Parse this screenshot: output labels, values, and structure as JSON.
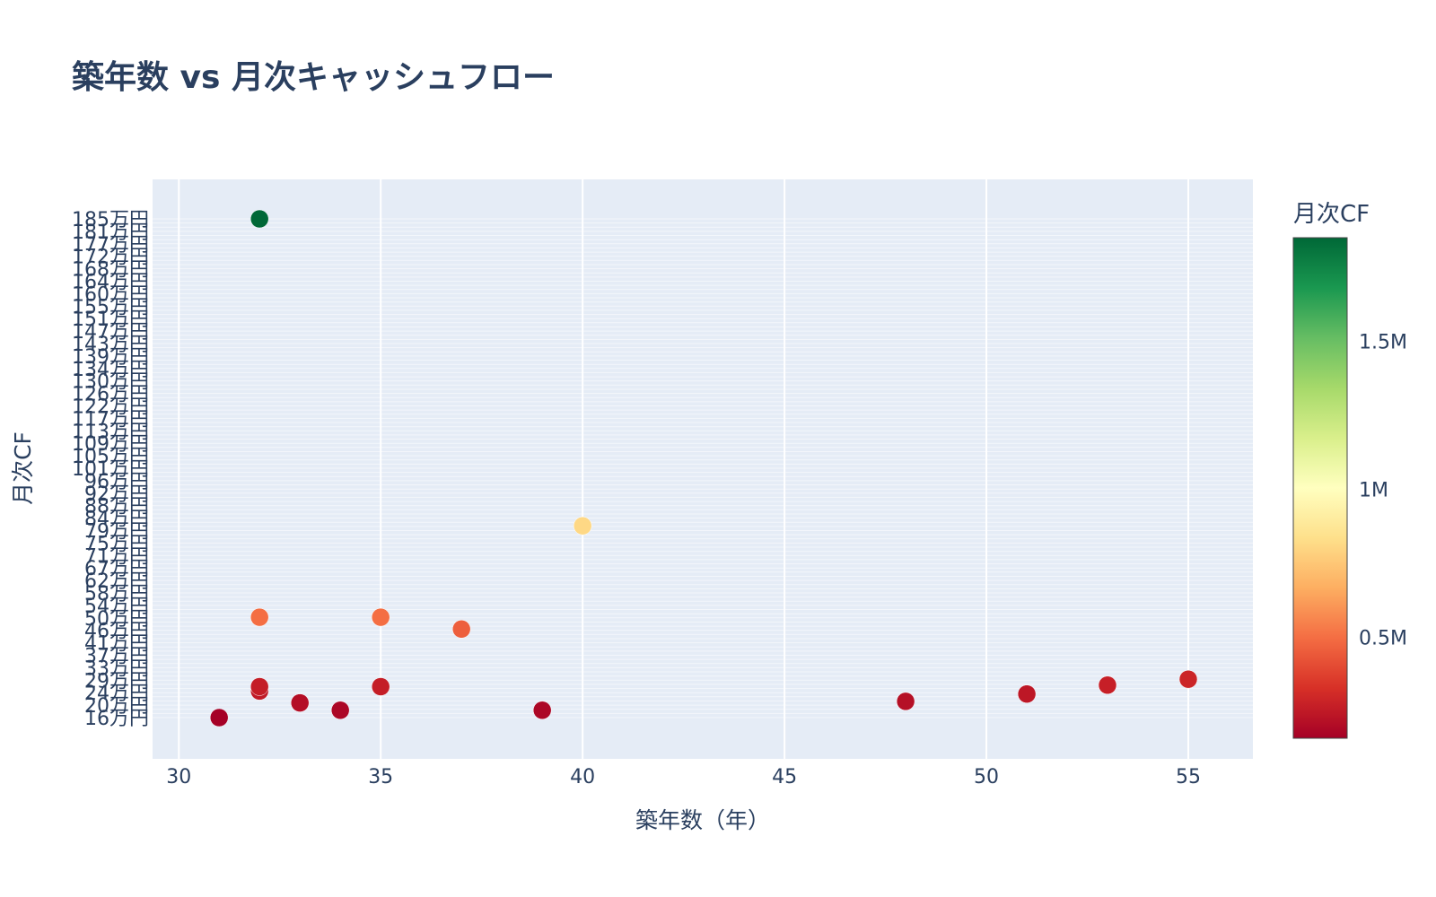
{
  "colors": {
    "plot_bg": "#e5ecf6",
    "grid": "#ffffff",
    "text": "#2a3f5f",
    "colorscale": [
      "#a50026",
      "#d73027",
      "#f46d43",
      "#fdae61",
      "#fee08b",
      "#ffffbf",
      "#d9ef8b",
      "#a6d96a",
      "#66bd63",
      "#1a9850",
      "#006837"
    ]
  },
  "chart_data": {
    "type": "scatter",
    "title": "築年数 vs 月次キャッシュフロー",
    "xlabel": "築年数（年）",
    "ylabel": "月次CF",
    "xlim": [
      29.35,
      56.6
    ],
    "x_ticks": [
      30,
      35,
      40,
      45,
      50,
      55
    ],
    "y_axis_note": "categorical axis: each distinct y value is its own category; tick labels overlap and are illegible except the bottom one",
    "y_bottom_tick_label": "16万円",
    "y_top_tick_label": "185万円",
    "colorbar": {
      "title": "月次CF",
      "range": [
        160000,
        1850000
      ],
      "ticks": [
        500000,
        1000000,
        1500000
      ],
      "tick_labels": [
        "0.5M",
        "1M",
        "1.5M"
      ]
    },
    "points": [
      {
        "x": 31,
        "y": 160000
      },
      {
        "x": 34,
        "y": 185000
      },
      {
        "x": 39,
        "y": 185000
      },
      {
        "x": 33,
        "y": 210000
      },
      {
        "x": 48,
        "y": 215000
      },
      {
        "x": 51,
        "y": 240000
      },
      {
        "x": 32,
        "y": 250000
      },
      {
        "x": 32,
        "y": 265000
      },
      {
        "x": 35,
        "y": 265000
      },
      {
        "x": 53,
        "y": 270000
      },
      {
        "x": 55,
        "y": 290000
      },
      {
        "x": 37,
        "y": 460000
      },
      {
        "x": 32,
        "y": 500000
      },
      {
        "x": 35,
        "y": 500000
      },
      {
        "x": 40,
        "y": 810000
      },
      {
        "x": 32,
        "y": 1850000
      }
    ]
  }
}
